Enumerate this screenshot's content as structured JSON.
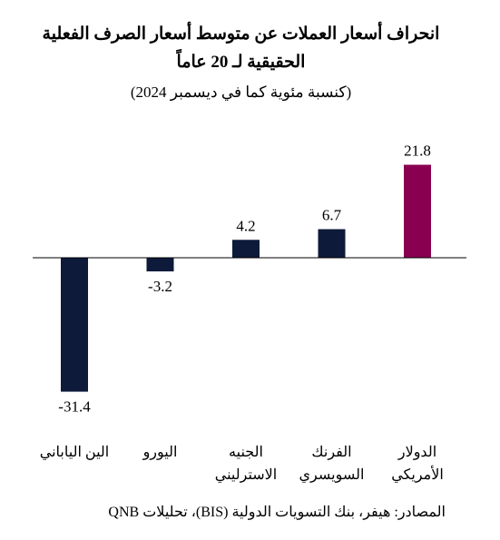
{
  "chart_data": {
    "type": "bar",
    "title": [
      "انحراف أسعار العملات عن متوسط أسعار الصرف الفعلية",
      "الحقيقية لـ 20 عاماً"
    ],
    "subtitle": "(كنسبة مئوية كما في ديسمبر 2024)",
    "categories": [
      [
        "الين الياباني"
      ],
      [
        "اليورو"
      ],
      [
        "الجنيه",
        "الاسترليني"
      ],
      [
        "الفرنك",
        "السويسري"
      ],
      [
        "الدولار",
        "الأمريكي"
      ]
    ],
    "values": [
      -31.4,
      -3.2,
      4.2,
      6.7,
      21.8
    ],
    "value_labels": [
      "-31.4",
      "-3.2",
      "4.2",
      "6.7",
      "21.8"
    ],
    "colors": [
      "#0d1a3a",
      "#0d1a3a",
      "#0d1a3a",
      "#0d1a3a",
      "#8a0050"
    ],
    "ylim": [
      -33,
      22
    ],
    "grid": false
  },
  "source": "المصادر: هيفر، بنك التسويات الدولية (BIS)، تحليلات QNB"
}
